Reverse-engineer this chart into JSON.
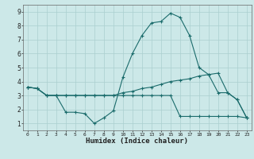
{
  "title": "",
  "xlabel": "Humidex (Indice chaleur)",
  "ylabel": "",
  "bg_color": "#cce8e8",
  "line_color": "#1a6b6b",
  "grid_color": "#aacfcf",
  "xlim": [
    -0.5,
    23.5
  ],
  "ylim": [
    0.5,
    9.5
  ],
  "xticks": [
    0,
    1,
    2,
    3,
    4,
    5,
    6,
    7,
    8,
    9,
    10,
    11,
    12,
    13,
    14,
    15,
    16,
    17,
    18,
    19,
    20,
    21,
    22,
    23
  ],
  "yticks": [
    1,
    2,
    3,
    4,
    5,
    6,
    7,
    8,
    9
  ],
  "line1_x": [
    0,
    1,
    2,
    3,
    4,
    5,
    6,
    7,
    8,
    9,
    10,
    11,
    12,
    13,
    14,
    15,
    16,
    17,
    18,
    19,
    20,
    21,
    22,
    23
  ],
  "line1_y": [
    3.6,
    3.5,
    3.0,
    3.0,
    3.0,
    3.0,
    3.0,
    3.0,
    3.0,
    3.0,
    3.2,
    3.3,
    3.5,
    3.6,
    3.8,
    4.0,
    4.1,
    4.2,
    4.4,
    4.5,
    4.6,
    3.2,
    2.7,
    1.4
  ],
  "line2_x": [
    0,
    1,
    2,
    3,
    4,
    5,
    6,
    7,
    8,
    9,
    10,
    11,
    12,
    13,
    14,
    15,
    16,
    17,
    18,
    19,
    20,
    21,
    22,
    23
  ],
  "line2_y": [
    3.6,
    3.5,
    3.0,
    3.0,
    1.8,
    1.8,
    1.7,
    1.0,
    1.4,
    1.9,
    4.3,
    6.0,
    7.3,
    8.2,
    8.3,
    8.9,
    8.6,
    7.3,
    5.0,
    4.5,
    3.2,
    3.2,
    2.7,
    1.4
  ],
  "line3_x": [
    0,
    1,
    2,
    3,
    4,
    5,
    6,
    7,
    8,
    9,
    10,
    11,
    12,
    13,
    14,
    15,
    16,
    17,
    18,
    19,
    20,
    21,
    22,
    23
  ],
  "line3_y": [
    3.6,
    3.5,
    3.0,
    3.0,
    3.0,
    3.0,
    3.0,
    3.0,
    3.0,
    3.0,
    3.0,
    3.0,
    3.0,
    3.0,
    3.0,
    3.0,
    1.5,
    1.5,
    1.5,
    1.5,
    1.5,
    1.5,
    1.5,
    1.4
  ]
}
